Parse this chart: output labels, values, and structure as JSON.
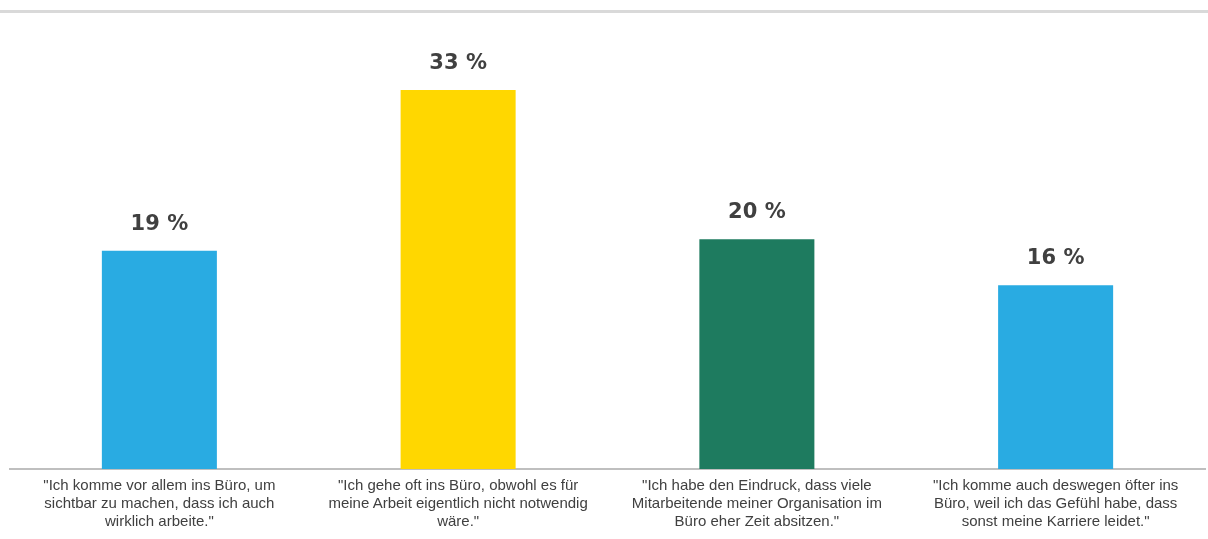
{
  "chart_data": {
    "type": "bar",
    "categories": [
      "\"Ich komme vor allem ins Büro, um sichtbar zu machen, dass ich auch wirklich arbeite.\"",
      "\"Ich gehe oft ins Büro, obwohl es für meine Arbeit eigentlich nicht notwendig wäre.\"",
      "\"Ich habe den Eindruck, dass viele Mitarbeitende meiner Organisation im Büro eher Zeit absitzen.\"",
      "\"Ich komme auch deswegen öfter ins Büro, weil ich das Gefühl habe, dass sonst meine Karriere leidet.\""
    ],
    "values": [
      19,
      33,
      20,
      16
    ],
    "colors": [
      "#29abe2",
      "#ffd700",
      "#1e7b5f",
      "#29abe2"
    ],
    "value_labels": [
      "19 %",
      "33 %",
      "20 %",
      "16 %"
    ],
    "grid": false,
    "legend": false
  }
}
